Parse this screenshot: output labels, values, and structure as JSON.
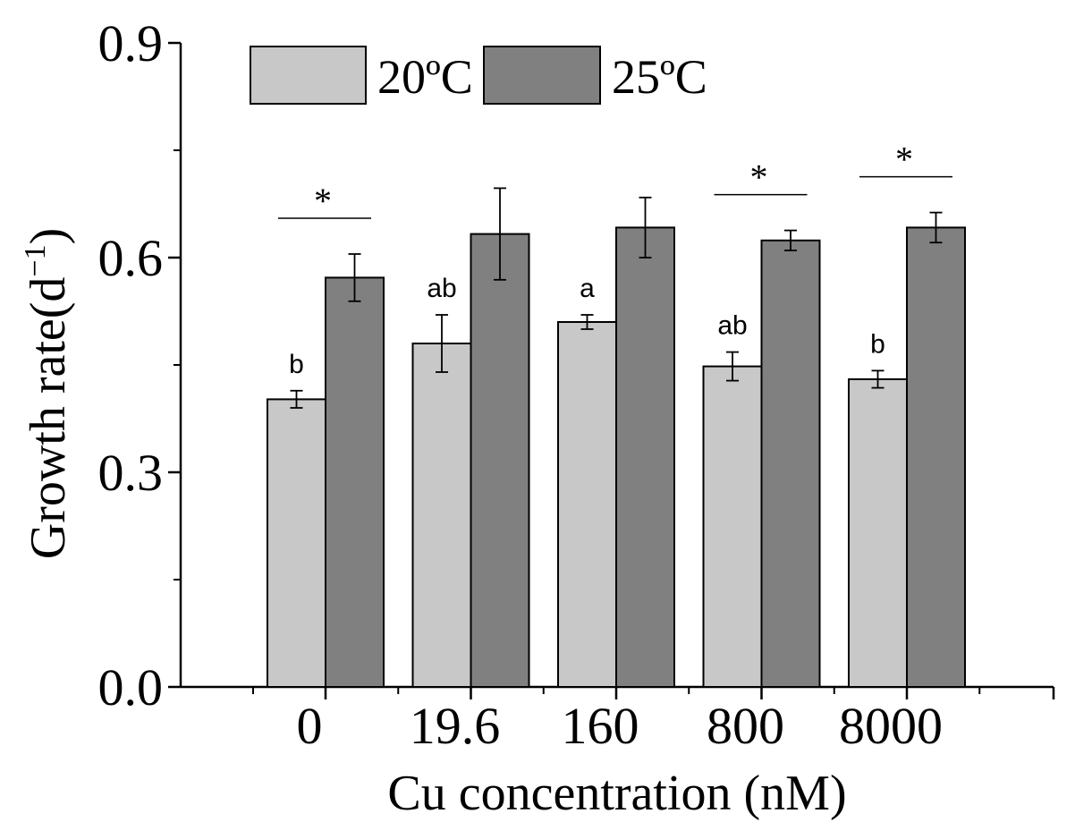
{
  "chart_data": {
    "type": "bar",
    "title": "",
    "xlabel": "Cu concentration (nM)",
    "ylabel": "Growth rate(d",
    "ylabel_superscript": "−1",
    "ylabel_close": ")",
    "ylim": [
      0.0,
      0.9
    ],
    "yticks": [
      "0.0",
      "0.3",
      "0.6",
      "0.9"
    ],
    "categories": [
      "0",
      "19.6",
      "160",
      "800",
      "8000"
    ],
    "series": [
      {
        "name": "20ºC",
        "color": "#c8c8c8",
        "values": [
          0.402,
          0.48,
          0.51,
          0.448,
          0.43
        ],
        "errors": [
          0.012,
          0.04,
          0.01,
          0.02,
          0.012
        ]
      },
      {
        "name": "25ºC",
        "color": "#808080",
        "values": [
          0.572,
          0.633,
          0.642,
          0.624,
          0.642
        ],
        "errors": [
          0.033,
          0.064,
          0.042,
          0.014,
          0.021
        ]
      }
    ],
    "significance_letters": [
      "b",
      "ab",
      "a",
      "ab",
      "b"
    ],
    "significance_stars": [
      "*",
      "",
      "",
      "*",
      "*"
    ],
    "legend_position": "top-left"
  }
}
